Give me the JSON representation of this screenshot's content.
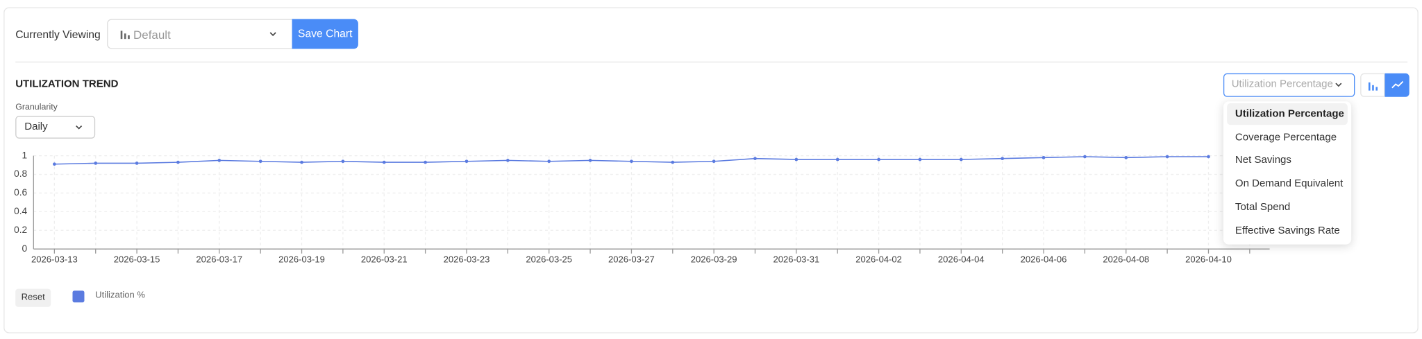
{
  "ui": {
    "viewing_label": "Currently Viewing",
    "view_select": "Default",
    "save_button": "Save Chart",
    "section_title": "UTILIZATION TREND",
    "granularity_label": "Granularity",
    "granularity_select": "Daily",
    "metric_select": "Utilization Percentage",
    "metric_options": [
      "Utilization Percentage",
      "Coverage Percentage",
      "Net Savings",
      "On Demand Equivalent",
      "Total Spend",
      "Effective Savings Rate"
    ],
    "reset_button": "Reset"
  },
  "chart_data": {
    "type": "line",
    "categories": [
      "2026-03-13",
      null,
      "2026-03-15",
      null,
      "2026-03-17",
      null,
      "2026-03-19",
      null,
      "2026-03-21",
      null,
      "2026-03-23",
      null,
      "2026-03-25",
      null,
      "2026-03-27",
      null,
      "2026-03-29",
      null,
      "2026-03-31",
      null,
      "2026-04-02",
      null,
      "2026-04-04",
      null,
      "2026-04-06",
      null,
      "2026-04-08",
      null,
      "2026-04-10",
      null
    ],
    "series": [
      {
        "name": "Utilization %",
        "color": "#5b7be0",
        "values": [
          0.91,
          0.92,
          0.92,
          0.93,
          0.95,
          0.94,
          0.93,
          0.94,
          0.93,
          0.93,
          0.94,
          0.95,
          0.94,
          0.95,
          0.94,
          0.93,
          0.94,
          0.97,
          0.96,
          0.96,
          0.96,
          0.96,
          0.96,
          0.97,
          0.98,
          0.99,
          0.98,
          0.99,
          0.99,
          null
        ]
      }
    ],
    "ylim": [
      0,
      1
    ],
    "yticks": [
      0,
      0.2,
      0.4,
      0.6,
      0.8,
      1
    ],
    "grid": true
  }
}
